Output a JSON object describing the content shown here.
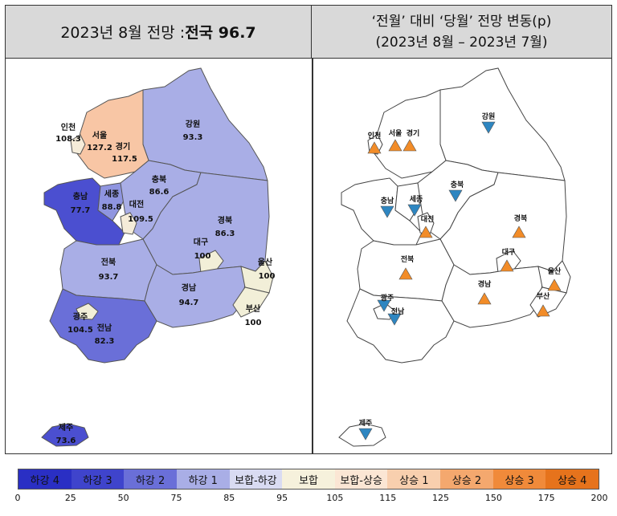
{
  "left_header": {
    "prefix": "2023년 8월 전망 : ",
    "highlight": "전국 96.7"
  },
  "right_header": {
    "line1": "‘전월’ 대비 ‘당월’ 전망 변동(p)",
    "line2": "(2023년 8월 – 2023년 7월)"
  },
  "left_regions": [
    {
      "name": "인천",
      "value": "108.3",
      "color": "#f5ecd9"
    },
    {
      "name": "서울",
      "value": "127.2",
      "color": "#f8c6a5"
    },
    {
      "name": "경기",
      "value": "117.5",
      "color": "#f8c6a5"
    },
    {
      "name": "강원",
      "value": "93.3",
      "color": "#a9aee6"
    },
    {
      "name": "충북",
      "value": "86.6",
      "color": "#a9aee6"
    },
    {
      "name": "충남",
      "value": "77.7",
      "color": "#4b4fd0"
    },
    {
      "name": "세종",
      "value": "88.8",
      "color": "#8f95e0"
    },
    {
      "name": "대전",
      "value": "109.5",
      "color": "#f5ecd9"
    },
    {
      "name": "경북",
      "value": "86.3",
      "color": "#a9aee6"
    },
    {
      "name": "대구",
      "value": "100",
      "color": "#f2efd8"
    },
    {
      "name": "울산",
      "value": "100",
      "color": "#f2efd8"
    },
    {
      "name": "전북",
      "value": "93.7",
      "color": "#a9aee6"
    },
    {
      "name": "경남",
      "value": "94.7",
      "color": "#a9aee6"
    },
    {
      "name": "부산",
      "value": "100",
      "color": "#f2efd8"
    },
    {
      "name": "광주",
      "value": "104.5",
      "color": "#f2efd8"
    },
    {
      "name": "전남",
      "value": "82.3",
      "color": "#6a6fd8"
    },
    {
      "name": "제주",
      "value": "73.6",
      "color": "#4b4fd0"
    }
  ],
  "right_regions": [
    {
      "name": "인천",
      "trend": "up"
    },
    {
      "name": "서울",
      "trend": "up"
    },
    {
      "name": "경기",
      "trend": "up"
    },
    {
      "name": "강원",
      "trend": "down"
    },
    {
      "name": "충북",
      "trend": "down"
    },
    {
      "name": "충남",
      "trend": "down"
    },
    {
      "name": "세종",
      "trend": "down"
    },
    {
      "name": "대전",
      "trend": "up"
    },
    {
      "name": "경북",
      "trend": "up"
    },
    {
      "name": "대구",
      "trend": "up"
    },
    {
      "name": "울산",
      "trend": "up"
    },
    {
      "name": "전북",
      "trend": "up"
    },
    {
      "name": "경남",
      "trend": "up"
    },
    {
      "name": "부산",
      "trend": "up"
    },
    {
      "name": "광주",
      "trend": "down"
    },
    {
      "name": "전남",
      "trend": "down"
    },
    {
      "name": "제주",
      "trend": "down"
    }
  ],
  "legend": [
    {
      "label": "하강 4",
      "color": "#2a2fc4"
    },
    {
      "label": "하강 3",
      "color": "#3f44cc"
    },
    {
      "label": "하강 2",
      "color": "#6a6fd8"
    },
    {
      "label": "하강 1",
      "color": "#a9aee6"
    },
    {
      "label": "보합-하강",
      "color": "#d9dbf2"
    },
    {
      "label": "보합",
      "color": "#f6f1dc"
    },
    {
      "label": "보합-상승",
      "color": "#fbe6d4"
    },
    {
      "label": "상승 1",
      "color": "#f8cfae"
    },
    {
      "label": "상승 2",
      "color": "#f4a86e"
    },
    {
      "label": "상승 3",
      "color": "#f08a3a"
    },
    {
      "label": "상승 4",
      "color": "#e6731c"
    }
  ],
  "ticks": [
    "0",
    "25",
    "50",
    "75",
    "85",
    "95",
    "105",
    "115",
    "125",
    "150",
    "175",
    "200"
  ],
  "colors": {
    "up": "#f28c28",
    "down": "#2e86c1"
  }
}
